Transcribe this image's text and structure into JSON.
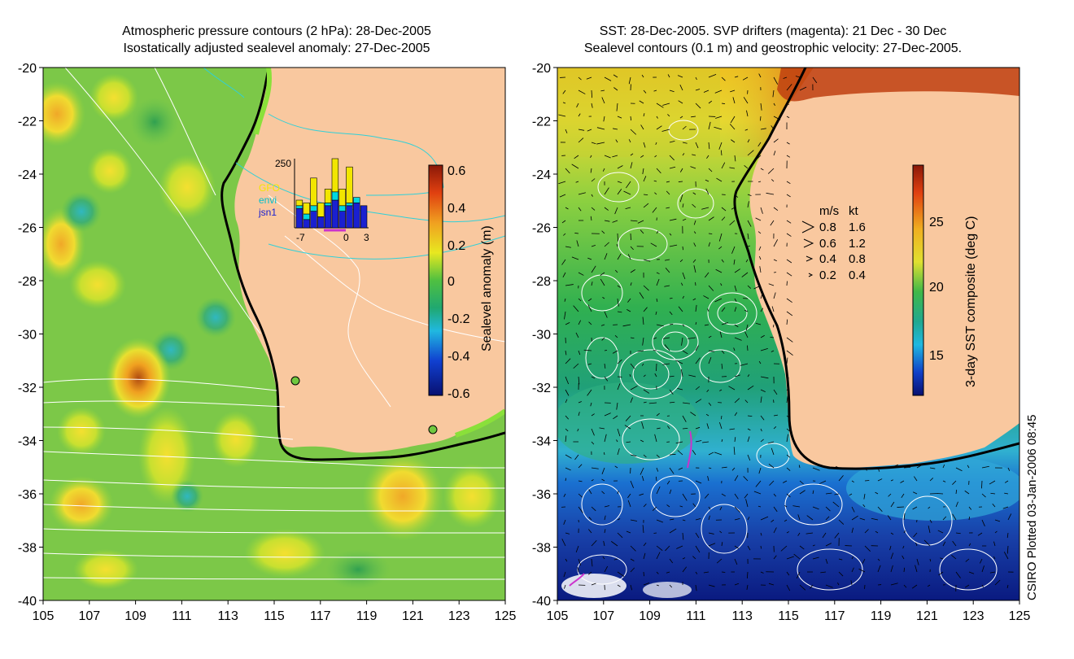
{
  "left_panel": {
    "title_line1": "Atmospheric pressure contours (2 hPa): 28-Dec-2005",
    "title_line2": "Isostatically adjusted sealevel anomaly: 27-Dec-2005",
    "colorbar": {
      "label": "Sealevel anomaly (m)",
      "ticks": [
        "0.6",
        "0.4",
        "0.2",
        "0",
        "-0.2",
        "-0.4",
        "-0.6"
      ]
    },
    "inset": {
      "y_max_label": "250",
      "x_labels": [
        "-7",
        "0",
        "3"
      ],
      "legend": [
        "GFO",
        "envi",
        "jsn1"
      ],
      "colors": [
        "#f2e600",
        "#00d8e0",
        "#1a20d0"
      ],
      "bars": [
        {
          "GFO": 20,
          "envi": 10,
          "jsn1": 70
        },
        {
          "GFO": 40,
          "envi": 20,
          "jsn1": 30
        },
        {
          "GFO": 100,
          "envi": 20,
          "jsn1": 60
        },
        {
          "GFO": 50,
          "envi": 0,
          "jsn1": 40
        },
        {
          "GFO": 50,
          "envi": 10,
          "jsn1": 80
        },
        {
          "GFO": 120,
          "envi": 30,
          "jsn1": 100
        },
        {
          "GFO": 60,
          "envi": 20,
          "jsn1": 60
        },
        {
          "GFO": 130,
          "envi": 10,
          "jsn1": 80
        },
        {
          "GFO": 0,
          "envi": 20,
          "jsn1": 90
        },
        {
          "GFO": 0,
          "envi": 0,
          "jsn1": 80
        }
      ]
    }
  },
  "right_panel": {
    "title_line1": "SST: 28-Dec-2005. SVP drifters (magenta): 21 Dec - 30 Dec",
    "title_line2": "Sealevel contours (0.1 m) and geostrophic velocity: 27-Dec-2005.",
    "colorbar": {
      "label": "3-day SST composite (deg C)",
      "ticks": [
        "25",
        "20",
        "15"
      ]
    },
    "velocity_legend": {
      "header_ms": "m/s",
      "header_kt": "kt",
      "rows": [
        {
          "ms": "0.8",
          "kt": "1.6"
        },
        {
          "ms": "0.6",
          "kt": "1.2"
        },
        {
          "ms": "0.4",
          "kt": "0.8"
        },
        {
          "ms": "0.2",
          "kt": "0.4"
        }
      ]
    }
  },
  "axes": {
    "lat_ticks": [
      "-20",
      "-22",
      "-24",
      "-26",
      "-28",
      "-30",
      "-32",
      "-34",
      "-36",
      "-38",
      "-40"
    ],
    "lon_ticks": [
      "105",
      "107",
      "109",
      "111",
      "113",
      "115",
      "117",
      "119",
      "121",
      "123",
      "125"
    ]
  },
  "credit": "CSIRO Plotted 03-Jan-2006 08:45",
  "colors": {
    "land": "#f9c89f",
    "coast": "#000000",
    "pressure_contour": "#ffffff",
    "drifter": "#cc33cc"
  }
}
